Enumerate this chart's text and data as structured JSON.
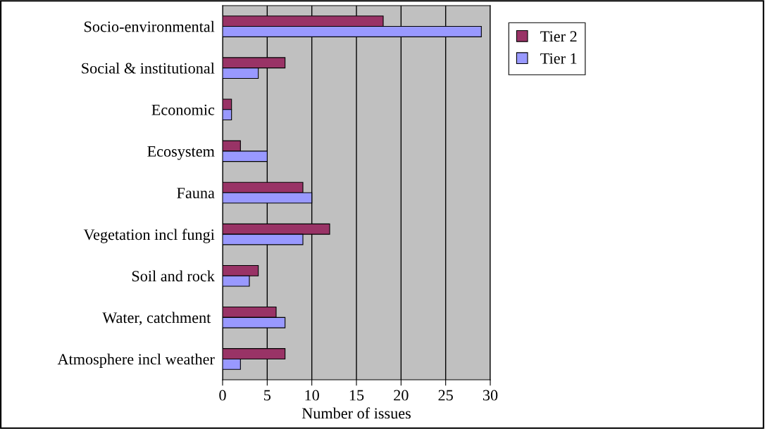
{
  "chart_data": {
    "type": "bar",
    "orientation": "horizontal",
    "xlabel": "Number of issues",
    "categories": [
      "Socio-environmental",
      "Social & institutional",
      "Economic",
      "Ecosystem",
      "Fauna",
      "Vegetation incl fungi",
      "Soil and rock",
      "Water, catchment ",
      "Atmosphere incl weather"
    ],
    "series": [
      {
        "name": "Tier 2",
        "color": "#993366",
        "values": [
          18,
          7,
          1,
          2,
          9,
          12,
          4,
          6,
          7
        ]
      },
      {
        "name": "Tier 1",
        "color": "#9999ff",
        "values": [
          29,
          4,
          1,
          5,
          10,
          9,
          3,
          7,
          2
        ]
      }
    ],
    "xlim": [
      0,
      30
    ],
    "xticks": [
      0,
      5,
      10,
      15,
      20,
      25,
      30
    ],
    "grid": "x",
    "legend": "top right"
  }
}
